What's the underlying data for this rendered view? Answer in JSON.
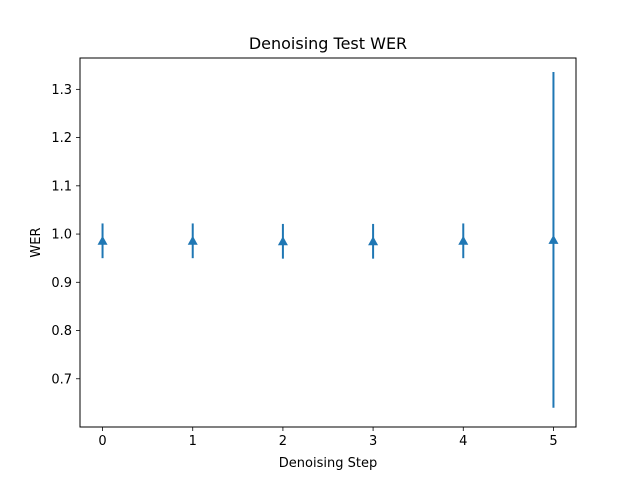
{
  "chart_data": {
    "type": "scatter",
    "title": "Denoising Test WER",
    "xlabel": "Denoising Step",
    "ylabel": "WER",
    "xlim": [
      -0.25,
      5.25
    ],
    "ylim": [
      0.6,
      1.365
    ],
    "xticks": [
      0,
      1,
      2,
      3,
      4,
      5
    ],
    "xtick_labels": [
      "0",
      "1",
      "2",
      "3",
      "4",
      "5"
    ],
    "yticks": [
      0.7,
      0.8,
      0.9,
      1.0,
      1.1,
      1.2,
      1.3
    ],
    "ytick_labels": [
      "0.7",
      "0.8",
      "0.9",
      "1.0",
      "1.1",
      "1.2",
      "1.3"
    ],
    "grid": false,
    "marker": "triangle-up",
    "color": "#1f77b4",
    "series": [
      {
        "x": [
          0,
          1,
          2,
          3,
          4,
          5
        ],
        "y": [
          0.986,
          0.986,
          0.985,
          0.985,
          0.986,
          0.988
        ],
        "yerr_low": [
          0.95,
          0.95,
          0.949,
          0.949,
          0.95,
          0.64
        ],
        "yerr_high": [
          1.022,
          1.022,
          1.021,
          1.021,
          1.022,
          1.336
        ]
      }
    ]
  }
}
